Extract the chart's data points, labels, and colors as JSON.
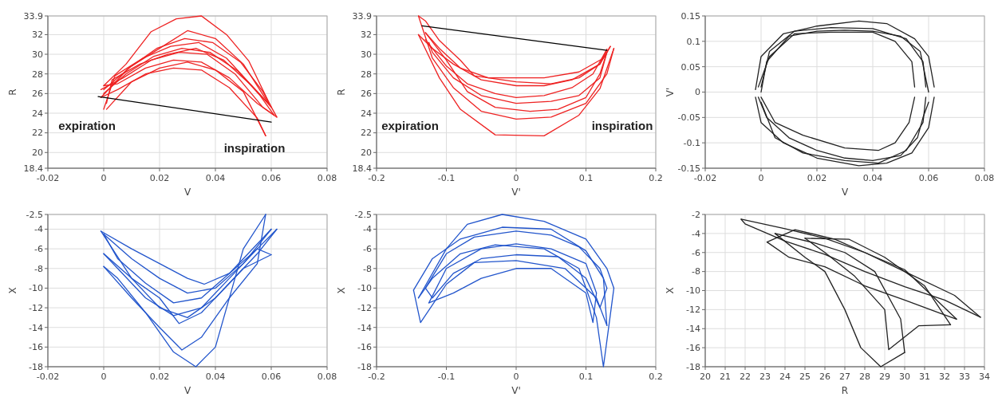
{
  "chart_data": [
    {
      "type": "line",
      "xlabel": "V",
      "ylabel": "R",
      "xlim": [
        -0.02,
        0.08
      ],
      "xticks": [
        -0.02,
        0,
        0.02,
        0.04,
        0.06,
        0.08
      ],
      "ylim": [
        18.4,
        33.9
      ],
      "yticks": [
        18.4,
        20,
        22,
        24,
        26,
        28,
        30,
        32,
        33.9
      ],
      "grid": true,
      "annotations": [
        "expiration",
        "inspiration"
      ],
      "series": [
        {
          "color": "#ee2222",
          "x": [
            0,
            0.008,
            0.018,
            0.028,
            0.038,
            0.048,
            0.056,
            0.061
          ],
          "values": [
            26.0,
            28.0,
            29.8,
            30.6,
            30.2,
            28.3,
            25.8,
            23.8
          ]
        },
        {
          "color": "#ee2222",
          "x": [
            0.061,
            0.055,
            0.045,
            0.035,
            0.025,
            0.015,
            0.005,
            0
          ],
          "values": [
            23.8,
            25.0,
            27.6,
            29.2,
            29.4,
            28.6,
            27.0,
            26.8
          ]
        },
        {
          "color": "#ee2222",
          "x": [
            0,
            0.008,
            0.017,
            0.026,
            0.035,
            0.044,
            0.052,
            0.06
          ],
          "values": [
            26.8,
            29.0,
            32.3,
            33.6,
            33.9,
            32.0,
            29.3,
            24.6
          ]
        },
        {
          "color": "#ee2222",
          "x": [
            0.06,
            0.054,
            0.044,
            0.034,
            0.024,
            0.014,
            0.004,
            0
          ],
          "values": [
            24.6,
            26.5,
            29.6,
            31.2,
            30.8,
            29.6,
            27.8,
            24.4
          ]
        },
        {
          "color": "#ee2222",
          "x": [
            0.001,
            0.01,
            0.02,
            0.03,
            0.04,
            0.05,
            0.058
          ],
          "values": [
            24.4,
            27.2,
            28.6,
            29.2,
            28.4,
            26.2,
            21.7
          ]
        },
        {
          "color": "#ee2222",
          "x": [
            0.058,
            0.055,
            0.045,
            0.035,
            0.025,
            0.015,
            0.005,
            -0.001
          ],
          "values": [
            21.7,
            23.5,
            26.6,
            28.4,
            28.6,
            28.0,
            26.4,
            25.6
          ]
        },
        {
          "color": "#ee2222",
          "x": [
            -0.001,
            0.009,
            0.019,
            0.029,
            0.039,
            0.049,
            0.057,
            0.062
          ],
          "values": [
            25.6,
            28.6,
            30.6,
            31.6,
            31.2,
            29.2,
            26.2,
            23.6
          ]
        },
        {
          "color": "#ee2222",
          "x": [
            0.062,
            0.057,
            0.047,
            0.037,
            0.027,
            0.017,
            0.007,
            -0.001
          ],
          "values": [
            23.6,
            24.6,
            28.0,
            30.0,
            30.2,
            29.4,
            27.6,
            26.4
          ]
        },
        {
          "color": "#ee2222",
          "x": [
            0,
            0.01,
            0.02,
            0.03,
            0.04,
            0.05,
            0.059
          ],
          "values": [
            26.4,
            28.8,
            30.6,
            32.4,
            31.6,
            29.0,
            25.0
          ]
        },
        {
          "color": "#ee2222",
          "x": [
            0.059,
            0.053,
            0.043,
            0.033,
            0.023,
            0.013,
            0.003,
            0.001
          ],
          "values": [
            25.0,
            26.8,
            29.4,
            30.6,
            30.0,
            29.0,
            27.4,
            25.0
          ]
        },
        {
          "color": "#000000",
          "x": [
            -0.002,
            0.06
          ],
          "values": [
            25.7,
            23.1
          ]
        }
      ]
    },
    {
      "type": "line",
      "xlabel": "V'",
      "ylabel": "R",
      "xlim": [
        -0.2,
        0.2
      ],
      "xticks": [
        -0.2,
        -0.1,
        0,
        0.1,
        0.2
      ],
      "ylim": [
        18.4,
        33.9
      ],
      "yticks": [
        18.4,
        20,
        22,
        24,
        26,
        28,
        30,
        32,
        33.9
      ],
      "grid": true,
      "annotations": [
        "expiration",
        "inspiration"
      ],
      "series": [
        {
          "color": "#ee2222",
          "x": [
            -0.13,
            -0.1,
            -0.07,
            -0.03,
            0,
            0.04,
            0.08,
            0.11,
            0.13
          ],
          "values": [
            31.5,
            28.8,
            27.0,
            26.0,
            25.6,
            25.8,
            26.6,
            28.0,
            30.5
          ]
        },
        {
          "color": "#ee2222",
          "x": [
            0.13,
            0.12,
            0.08,
            0.04,
            0,
            -0.05,
            -0.09,
            -0.12,
            -0.14
          ],
          "values": [
            30.5,
            29.0,
            27.4,
            26.8,
            26.8,
            27.4,
            29.0,
            30.6,
            32.0
          ]
        },
        {
          "color": "#ee2222",
          "x": [
            -0.14,
            -0.11,
            -0.08,
            -0.03,
            0.04,
            0.09,
            0.12,
            0.14
          ],
          "values": [
            32.0,
            27.6,
            24.4,
            21.8,
            21.7,
            23.8,
            26.5,
            30.6
          ]
        },
        {
          "color": "#ee2222",
          "x": [
            0.14,
            0.13,
            0.1,
            0.05,
            0,
            -0.05,
            -0.09,
            -0.12,
            -0.14
          ],
          "values": [
            30.6,
            28.0,
            25.0,
            23.6,
            23.4,
            24.2,
            26.6,
            29.6,
            33.9
          ]
        },
        {
          "color": "#ee2222",
          "x": [
            -0.14,
            -0.13,
            -0.11,
            -0.08,
            -0.06,
            0,
            0.05,
            0.09,
            0.12,
            0.135
          ],
          "values": [
            33.9,
            33.4,
            31.4,
            29.4,
            27.8,
            27.2,
            27.0,
            27.6,
            29.0,
            30.8
          ]
        },
        {
          "color": "#ee2222",
          "x": [
            0.135,
            0.125,
            0.09,
            0.04,
            -0.04,
            -0.08,
            -0.11,
            -0.13
          ],
          "values": [
            30.8,
            29.6,
            28.2,
            27.6,
            27.6,
            28.6,
            30.6,
            32.2
          ]
        },
        {
          "color": "#ee2222",
          "x": [
            -0.13,
            -0.1,
            -0.07,
            -0.03,
            0.02,
            0.06,
            0.1,
            0.12,
            0.13
          ],
          "values": [
            32.2,
            29.4,
            26.2,
            24.6,
            24.2,
            24.4,
            25.6,
            28.0,
            30.2
          ]
        },
        {
          "color": "#ee2222",
          "x": [
            0.13,
            0.12,
            0.09,
            0.05,
            0,
            -0.05,
            -0.09,
            -0.12,
            -0.125
          ],
          "values": [
            30.2,
            27.6,
            25.8,
            25.2,
            25.0,
            25.8,
            27.6,
            30.2,
            31.2
          ]
        },
        {
          "color": "#000000",
          "x": [
            -0.135,
            0.13
          ],
          "values": [
            32.9,
            30.4
          ]
        }
      ]
    },
    {
      "type": "line",
      "xlabel": "V",
      "ylabel": "V'",
      "xlim": [
        -0.02,
        0.08
      ],
      "xticks": [
        -0.02,
        0,
        0.02,
        0.04,
        0.06,
        0.08
      ],
      "ylim": [
        -0.15,
        0.15
      ],
      "yticks": [
        -0.15,
        -0.1,
        -0.05,
        0,
        0.05,
        0.1,
        0.15
      ],
      "grid": true,
      "series": [
        {
          "color": "#222222",
          "x": [
            0,
            0.002,
            0.01,
            0.02,
            0.03,
            0.04,
            0.05,
            0.057,
            0.06
          ],
          "values": [
            0,
            0.06,
            0.11,
            0.12,
            0.122,
            0.12,
            0.11,
            0.08,
            0
          ]
        },
        {
          "color": "#222222",
          "x": [
            0.06,
            0.058,
            0.056,
            0.05,
            0.04,
            0.03,
            0.02,
            0.01,
            0.002,
            -0.001
          ],
          "values": [
            -0.02,
            -0.05,
            -0.09,
            -0.125,
            -0.135,
            -0.13,
            -0.115,
            -0.09,
            -0.05,
            -0.01
          ]
        },
        {
          "color": "#222222",
          "x": [
            -0.002,
            0,
            0.008,
            0.02,
            0.035,
            0.045,
            0.055,
            0.06,
            0.062
          ],
          "values": [
            0.005,
            0.07,
            0.115,
            0.13,
            0.14,
            0.135,
            0.105,
            0.07,
            0.01
          ]
        },
        {
          "color": "#222222",
          "x": [
            0.062,
            0.06,
            0.054,
            0.045,
            0.035,
            0.02,
            0.008,
            0,
            -0.002
          ],
          "values": [
            -0.01,
            -0.07,
            -0.12,
            -0.14,
            -0.145,
            -0.13,
            -0.1,
            -0.06,
            -0.01
          ]
        },
        {
          "color": "#222222",
          "x": [
            -0.001,
            0.003,
            0.012,
            0.025,
            0.04,
            0.048,
            0.054,
            0.055
          ],
          "values": [
            0.01,
            0.07,
            0.115,
            0.118,
            0.118,
            0.1,
            0.06,
            0.01
          ]
        },
        {
          "color": "#222222",
          "x": [
            0.055,
            0.053,
            0.048,
            0.042,
            0.03,
            0.015,
            0.005,
            0
          ],
          "values": [
            -0.01,
            -0.06,
            -0.1,
            -0.115,
            -0.11,
            -0.085,
            -0.06,
            -0.01
          ]
        },
        {
          "color": "#222222",
          "x": [
            0,
            0.003,
            0.012,
            0.025,
            0.04,
            0.052,
            0.058,
            0.059
          ],
          "values": [
            0.01,
            0.08,
            0.12,
            0.127,
            0.125,
            0.105,
            0.06,
            0.01
          ]
        },
        {
          "color": "#222222",
          "x": [
            0.059,
            0.058,
            0.052,
            0.042,
            0.03,
            0.015,
            0.005,
            0
          ],
          "values": [
            -0.01,
            -0.06,
            -0.115,
            -0.14,
            -0.135,
            -0.12,
            -0.09,
            -0.02
          ]
        }
      ]
    },
    {
      "type": "line",
      "xlabel": "V",
      "ylabel": "X",
      "xlim": [
        -0.02,
        0.08
      ],
      "xticks": [
        -0.02,
        0,
        0.02,
        0.04,
        0.06,
        0.08
      ],
      "ylim": [
        -18,
        -2.5
      ],
      "yticks": [
        -18,
        -16,
        -14,
        -12,
        -10,
        -8,
        -6,
        -4,
        -2.5
      ],
      "grid": true,
      "series": [
        {
          "color": "#2255cc",
          "x": [
            0,
            0.01,
            0.02,
            0.03,
            0.04,
            0.05,
            0.06
          ],
          "values": [
            -4.5,
            -7,
            -9,
            -10.5,
            -10,
            -7.5,
            -4
          ]
        },
        {
          "color": "#2255cc",
          "x": [
            0.06,
            0.055,
            0.045,
            0.035,
            0.025,
            0.015,
            0.005,
            0
          ],
          "values": [
            -4,
            -5.5,
            -8.5,
            -11,
            -11.5,
            -9.5,
            -7,
            -4.5
          ]
        },
        {
          "color": "#2255cc",
          "x": [
            0,
            0.01,
            0.02,
            0.028,
            0.035,
            0.045,
            0.055,
            0.058
          ],
          "values": [
            -7.8,
            -11,
            -14,
            -16.3,
            -15,
            -11,
            -7.5,
            -2.5
          ]
        },
        {
          "color": "#2255cc",
          "x": [
            0.058,
            0.05,
            0.04,
            0.033,
            0.025,
            0.015,
            0.005,
            0
          ],
          "values": [
            -2.5,
            -6,
            -16,
            -18,
            -16.5,
            -12.5,
            -9,
            -7.8
          ]
        },
        {
          "color": "#2255cc",
          "x": [
            -0.001,
            0.01,
            0.02,
            0.03,
            0.036,
            0.045,
            0.055,
            0.06
          ],
          "values": [
            -4.2,
            -6,
            -7.5,
            -9,
            -9.6,
            -8.5,
            -6,
            -6.6
          ]
        },
        {
          "color": "#2255cc",
          "x": [
            0.06,
            0.05,
            0.04,
            0.03,
            0.02,
            0.01,
            -0.001
          ],
          "values": [
            -6.6,
            -8,
            -11,
            -13,
            -12,
            -9,
            -4.2
          ]
        },
        {
          "color": "#2255cc",
          "x": [
            0,
            0.01,
            0.02,
            0.027,
            0.035,
            0.045,
            0.055,
            0.062
          ],
          "values": [
            -6.5,
            -9,
            -11,
            -13.6,
            -12.5,
            -9.5,
            -6.5,
            -4
          ]
        },
        {
          "color": "#2255cc",
          "x": [
            0.062,
            0.055,
            0.045,
            0.035,
            0.025,
            0.015,
            0.005,
            0
          ],
          "values": [
            -4,
            -6,
            -9,
            -12,
            -12.8,
            -11,
            -8,
            -6.5
          ]
        }
      ]
    },
    {
      "type": "line",
      "xlabel": "V'",
      "ylabel": "X",
      "xlim": [
        -0.2,
        0.2
      ],
      "xticks": [
        -0.2,
        -0.1,
        0,
        0.1,
        0.2
      ],
      "ylim": [
        -18,
        -2.5
      ],
      "yticks": [
        -18,
        -16,
        -14,
        -12,
        -10,
        -8,
        -6,
        -4,
        -2.5
      ],
      "grid": true,
      "series": [
        {
          "color": "#2255cc",
          "x": [
            -0.13,
            -0.1,
            -0.06,
            0,
            0.05,
            0.09,
            0.12,
            0.13
          ],
          "values": [
            -10,
            -6.5,
            -4.8,
            -4.2,
            -4.6,
            -5.8,
            -8,
            -10
          ]
        },
        {
          "color": "#2255cc",
          "x": [
            0.13,
            0.12,
            0.1,
            0.06,
            0,
            -0.05,
            -0.09,
            -0.12,
            -0.13
          ],
          "values": [
            -10,
            -12,
            -9,
            -6.8,
            -6.6,
            -7,
            -8.5,
            -11,
            -10
          ]
        },
        {
          "color": "#2255cc",
          "x": [
            -0.14,
            -0.1,
            -0.07,
            -0.02,
            0.04,
            0.1,
            0.13,
            0.14
          ],
          "values": [
            -11,
            -6,
            -3.5,
            -2.5,
            -3.2,
            -5,
            -8,
            -10
          ]
        },
        {
          "color": "#2255cc",
          "x": [
            0.14,
            0.125,
            0.115,
            0.09,
            0.04,
            -0.03,
            -0.08,
            -0.12,
            -0.14
          ],
          "values": [
            -10,
            -18,
            -13,
            -8,
            -6,
            -5.6,
            -6.5,
            -9,
            -11
          ]
        },
        {
          "color": "#2255cc",
          "x": [
            -0.147,
            -0.12,
            -0.08,
            -0.02,
            0.05,
            0.1,
            0.125,
            0.13
          ],
          "values": [
            -10.2,
            -7,
            -5,
            -3.8,
            -4,
            -6.2,
            -9,
            -13.8
          ]
        },
        {
          "color": "#2255cc",
          "x": [
            0.13,
            0.115,
            0.07,
            0,
            -0.06,
            -0.1,
            -0.137,
            -0.147
          ],
          "values": [
            -13.8,
            -11,
            -8,
            -7.2,
            -7.4,
            -9.6,
            -13.5,
            -10.2
          ]
        },
        {
          "color": "#2255cc",
          "x": [
            -0.125,
            -0.1,
            -0.05,
            0,
            0.05,
            0.1,
            0.115
          ],
          "values": [
            -11.5,
            -8,
            -6,
            -5.5,
            -6,
            -7.5,
            -10.5
          ]
        },
        {
          "color": "#2255cc",
          "x": [
            0.115,
            0.11,
            0.1,
            0.05,
            0,
            -0.05,
            -0.09,
            -0.125
          ],
          "values": [
            -10.5,
            -13.5,
            -10.5,
            -8,
            -8,
            -9,
            -10.5,
            -11.5
          ]
        }
      ]
    },
    {
      "type": "line",
      "xlabel": "R",
      "ylabel": "X",
      "xlim": [
        20,
        34
      ],
      "xticks": [
        20,
        21,
        22,
        23,
        24,
        25,
        26,
        27,
        28,
        29,
        30,
        31,
        32,
        33,
        34
      ],
      "ylim": [
        -18,
        -2
      ],
      "yticks": [
        -18,
        -16,
        -14,
        -12,
        -10,
        -8,
        -6,
        -4,
        -2
      ],
      "grid": true,
      "series": [
        {
          "color": "#222222",
          "x": [
            21.8,
            24,
            26,
            28,
            30,
            32.5,
            33.8
          ],
          "values": [
            -2.5,
            -3.5,
            -4.5,
            -6,
            -8,
            -10.5,
            -12.8
          ]
        },
        {
          "color": "#222222",
          "x": [
            33.8,
            32,
            30,
            28,
            26,
            24,
            22,
            21.8
          ],
          "values": [
            -12.8,
            -11,
            -9.6,
            -8,
            -6.2,
            -4.8,
            -3,
            -2.5
          ]
        },
        {
          "color": "#222222",
          "x": [
            23.5,
            25.5,
            27,
            28.5,
            29.8,
            30
          ],
          "values": [
            -4,
            -5,
            -6,
            -8,
            -13,
            -16.5
          ]
        },
        {
          "color": "#222222",
          "x": [
            30,
            28.8,
            27.8,
            27,
            26,
            25,
            23.5
          ],
          "values": [
            -16.5,
            -18,
            -16,
            -12,
            -8,
            -6.5,
            -4
          ]
        },
        {
          "color": "#222222",
          "x": [
            23.1,
            24.5,
            26.5,
            28,
            30,
            32.6
          ],
          "values": [
            -4.9,
            -3.6,
            -4.6,
            -6,
            -7.8,
            -13
          ]
        },
        {
          "color": "#222222",
          "x": [
            32.6,
            31.8,
            30,
            28,
            26,
            24.2,
            23.1
          ],
          "values": [
            -13,
            -12.4,
            -11,
            -9.5,
            -7.5,
            -6.5,
            -4.9
          ]
        },
        {
          "color": "#222222",
          "x": [
            25,
            27.2,
            29,
            31,
            32.3
          ],
          "values": [
            -4.5,
            -4.6,
            -6.5,
            -9.5,
            -13.6
          ]
        },
        {
          "color": "#222222",
          "x": [
            32.3,
            30.7,
            29.2,
            29,
            27.5,
            26,
            25
          ],
          "values": [
            -13.6,
            -13.7,
            -16.2,
            -12,
            -8.5,
            -6,
            -4.5
          ]
        }
      ]
    }
  ]
}
